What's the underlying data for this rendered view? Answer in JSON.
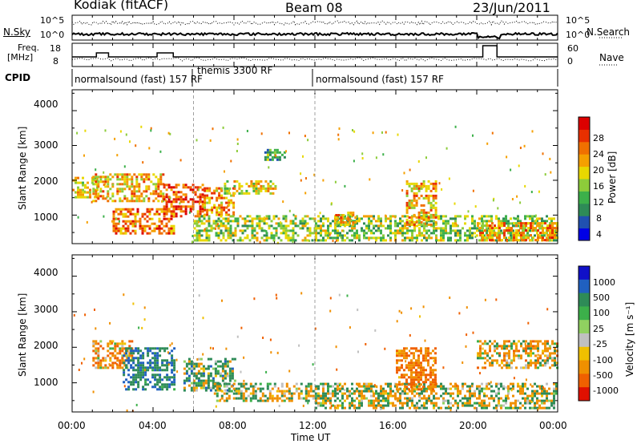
{
  "header": {
    "station": "Kodiak (fitACF)",
    "beam": "Beam 08",
    "date": "23/Jun/2011"
  },
  "noise_panel": {
    "left_label": "N.Sky",
    "left_ticks": [
      "10^5",
      "10^0"
    ],
    "right_label": "N.Search",
    "right_ticks": [
      "10^5",
      "10^0"
    ]
  },
  "freq_panel": {
    "left_label_1": "Freq.",
    "left_label_2": "[MHz]",
    "left_ticks": [
      "18",
      "8"
    ],
    "right_label": "Nave",
    "right_ticks": [
      "60",
      "0"
    ]
  },
  "cpid": {
    "label": "CPID",
    "segments": [
      {
        "text": "normalsound (fast) 157 RF",
        "start": 0,
        "end": 6
      },
      {
        "text": "themis 3300 RF",
        "start": 6,
        "end": 12
      },
      {
        "text": "normalsound (fast) 157 RF",
        "start": 12,
        "end": 24
      }
    ]
  },
  "xaxis": {
    "ticks": [
      "00:00",
      "04:00",
      "08:00",
      "12:00",
      "16:00",
      "20:00",
      "00:00"
    ],
    "label": "Time UT"
  },
  "power_panel": {
    "ylabel": "Slant Range [km]",
    "yticks": [
      "4000",
      "3000",
      "2000",
      "1000"
    ],
    "colorbar_label": "Power [dB]",
    "colorbar_ticks": [
      "28",
      "24",
      "20",
      "16",
      "12",
      "8",
      "4"
    ],
    "colors": [
      "#0000e6",
      "#2050b0",
      "#2e8b57",
      "#3cb04a",
      "#8dcc3a",
      "#e8d800",
      "#f5a000",
      "#f07000",
      "#e83000",
      "#dc0000"
    ]
  },
  "velocity_panel": {
    "ylabel": "Slant Range [km]",
    "yticks": [
      "4000",
      "3000",
      "2000",
      "1000"
    ],
    "colorbar_label": "Velocity [m s⁻¹]",
    "colorbar_ticks": [
      "1000",
      "500",
      "100",
      "25",
      "-25",
      "-100",
      "-500",
      "-1000"
    ],
    "colors": [
      "#1010c8",
      "#2060c0",
      "#2e8b57",
      "#3cb04a",
      "#90d060",
      "#c0c0c0",
      "#f0c000",
      "#f09000",
      "#f06000",
      "#e01000"
    ]
  },
  "chart_data": [
    {
      "type": "heatmap",
      "title": "Power",
      "xlabel": "Time UT",
      "ylabel": "Slant Range [km]",
      "xlim": [
        0,
        24
      ],
      "ylim": [
        180,
        4600
      ],
      "colorbar": {
        "label": "Power [dB]",
        "range": [
          0,
          32
        ]
      },
      "regions": [
        {
          "t": [
            0,
            1.2
          ],
          "r": [
            1500,
            2100
          ],
          "level": 18
        },
        {
          "t": [
            1,
            4.5
          ],
          "r": [
            1400,
            2200
          ],
          "level": 20
        },
        {
          "t": [
            2,
            5
          ],
          "r": [
            500,
            1200
          ],
          "level": 24
        },
        {
          "t": [
            4.5,
            6.5
          ],
          "r": [
            1000,
            1900
          ],
          "level": 26
        },
        {
          "t": [
            6.5,
            8
          ],
          "r": [
            1000,
            1800
          ],
          "level": 22
        },
        {
          "t": [
            7.5,
            10
          ],
          "r": [
            1600,
            2000
          ],
          "level": 18
        },
        {
          "t": [
            6,
            12
          ],
          "r": [
            300,
            1000
          ],
          "level": 14
        },
        {
          "t": [
            9.5,
            10.5
          ],
          "r": [
            2600,
            2900
          ],
          "level": 10
        },
        {
          "t": [
            12,
            24
          ],
          "r": [
            250,
            1000
          ],
          "level": 14
        },
        {
          "t": [
            13,
            14
          ],
          "r": [
            700,
            1100
          ],
          "level": 20
        },
        {
          "t": [
            16.5,
            18
          ],
          "r": [
            700,
            2000
          ],
          "level": 20
        },
        {
          "t": [
            20,
            24
          ],
          "r": [
            300,
            800
          ],
          "level": 22
        }
      ]
    },
    {
      "type": "heatmap",
      "title": "Velocity",
      "xlabel": "Time UT",
      "ylabel": "Slant Range [km]",
      "xlim": [
        0,
        24
      ],
      "ylim": [
        180,
        4600
      ],
      "colorbar": {
        "label": "Velocity [m s⁻¹]",
        "range": [
          -1000,
          1000
        ]
      },
      "regions": [
        {
          "t": [
            1,
            3
          ],
          "r": [
            1400,
            2200
          ],
          "level": -200
        },
        {
          "t": [
            2.5,
            5
          ],
          "r": [
            800,
            2000
          ],
          "level": 300
        },
        {
          "t": [
            5.5,
            8
          ],
          "r": [
            800,
            1700
          ],
          "level": 120
        },
        {
          "t": [
            7,
            12
          ],
          "r": [
            500,
            1000
          ],
          "level": 0
        },
        {
          "t": [
            12,
            24
          ],
          "r": [
            300,
            1000
          ],
          "level": 0
        },
        {
          "t": [
            16,
            18
          ],
          "r": [
            800,
            2000
          ],
          "level": -300
        },
        {
          "t": [
            20,
            24
          ],
          "r": [
            1400,
            2200
          ],
          "level": -120
        }
      ]
    }
  ]
}
